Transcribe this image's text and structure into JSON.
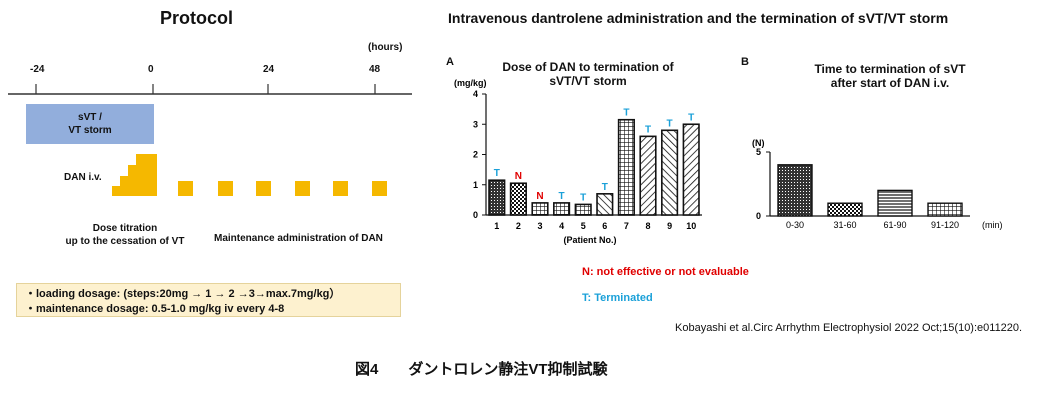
{
  "protocol": {
    "title": "Protocol",
    "time_unit": "(hours)",
    "ticks": [
      "-24",
      "0",
      "24",
      "48"
    ],
    "vt_storm_label_line1": "sVT /",
    "vt_storm_label_line2": "VT storm",
    "dan_iv_label": "DAN i.v.",
    "titration_line1": "Dose titration",
    "titration_line2": "up to the cessation of VT",
    "maintenance_label": "Maintenance administration of DAN",
    "dosage_line1": "・loading dosage: (steps:20mg → 1 → 2 →3→max.7mg/kg）",
    "dosage_line2": "・maintenance dosage: 0.5-1.0 mg/kg  iv every 4-8",
    "colors": {
      "storm": "#92aedc",
      "dose": "#f5b800",
      "box": "#fdf1cf"
    }
  },
  "main_title": "Intravenous dantrolene administration and the termination of sVT/VT storm",
  "legend": {
    "n_text": "N: not effective or not evaluable",
    "t_text": "T: Terminated",
    "n_color": "#e00000",
    "t_color": "#1aa0d8"
  },
  "citation": "Kobayashi et al.Circ Arrhythm Electrophysiol 2022 Oct;15(10):e011220.",
  "figure_caption": "図4　　ダントロレン静注VT抑制試験",
  "chart_data": [
    {
      "panel": "A",
      "type": "bar",
      "title_line1": "Dose of DAN to termination of",
      "title_line2": "sVT/VT storm",
      "ylabel": "(mg/kg)",
      "xlabel": "(Patient No.)",
      "ylim": [
        0,
        4
      ],
      "yticks": [
        "0",
        "1",
        "2",
        "3",
        "4"
      ],
      "categories": [
        "1",
        "2",
        "3",
        "4",
        "5",
        "6",
        "7",
        "8",
        "9",
        "10"
      ],
      "values": [
        1.15,
        1.05,
        0.4,
        0.4,
        0.35,
        0.7,
        3.15,
        2.6,
        2.8,
        3.0
      ],
      "outcomes": [
        "T",
        "N",
        "N",
        "T",
        "T",
        "T",
        "T",
        "T",
        "T",
        "T"
      ]
    },
    {
      "panel": "B",
      "type": "bar",
      "title_line1": "Time to termination of sVT",
      "title_line2": "after start of DAN i.v.",
      "ylabel": "(N)",
      "xlabel": "(min)",
      "ylim": [
        0,
        5
      ],
      "yticks": [
        "0",
        "5"
      ],
      "categories": [
        "0-30",
        "31-60",
        "61-90",
        "91-120"
      ],
      "values": [
        4,
        1,
        2,
        1
      ]
    }
  ]
}
